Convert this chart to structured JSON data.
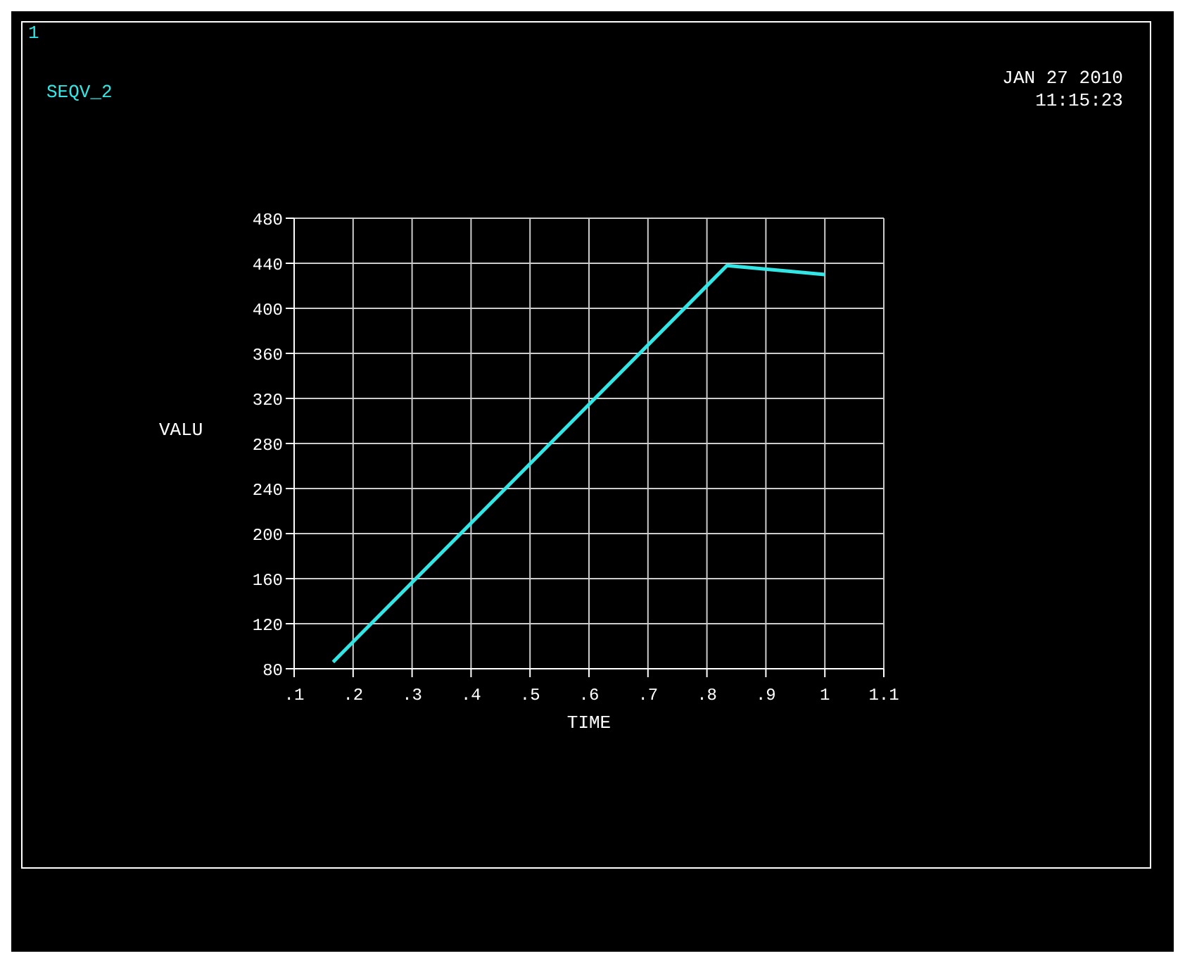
{
  "chart_data": {
    "type": "line",
    "xlabel": "TIME",
    "ylabel": "VALU",
    "annotations": [
      "1",
      "JAN 27 2010",
      "11:15:23"
    ],
    "series": [
      {
        "name": "SEQV_2",
        "color": "#33e6e6",
        "x": [
          0.166,
          0.834,
          1.0
        ],
        "values": [
          86,
          438,
          430
        ]
      }
    ],
    "xlim": [
      0.1,
      1.1
    ],
    "xticks": [
      {
        "value": 0.1,
        "label": ".1"
      },
      {
        "value": 0.2,
        "label": ".2"
      },
      {
        "value": 0.3,
        "label": ".3"
      },
      {
        "value": 0.4,
        "label": ".4"
      },
      {
        "value": 0.5,
        "label": ".5"
      },
      {
        "value": 0.6,
        "label": ".6"
      },
      {
        "value": 0.7,
        "label": ".7"
      },
      {
        "value": 0.8,
        "label": ".8"
      },
      {
        "value": 0.9,
        "label": ".9"
      },
      {
        "value": 1,
        "label": "1"
      },
      {
        "value": 1.1,
        "label": "1.1"
      }
    ],
    "ylim": [
      80,
      480
    ],
    "yticks": [
      80,
      120,
      160,
      200,
      240,
      280,
      320,
      360,
      400,
      440,
      480
    ],
    "grid": true,
    "legend": "top left",
    "marker": "none",
    "line_style": "solid"
  }
}
